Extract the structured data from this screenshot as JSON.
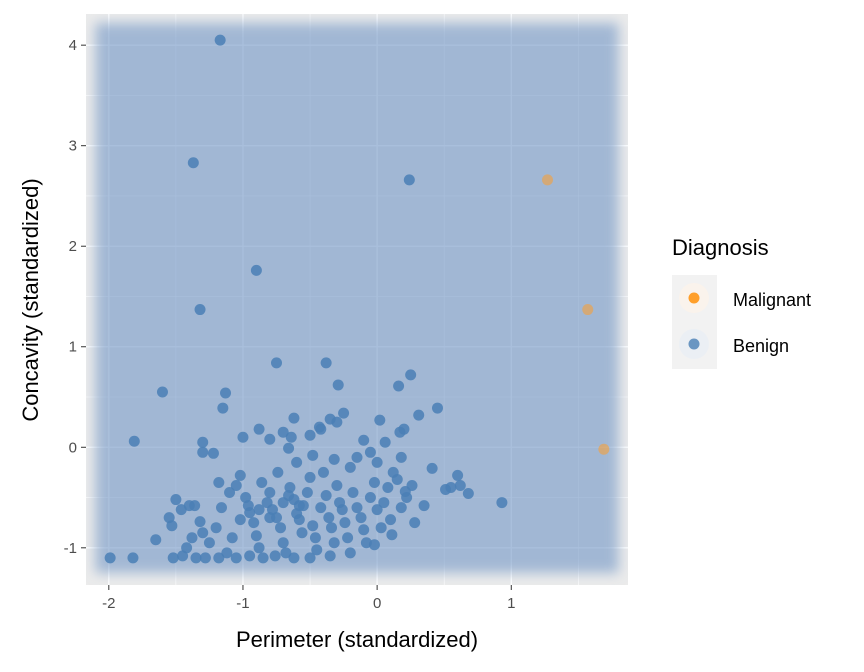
{
  "chart_data": {
    "type": "scatter",
    "title": "",
    "xlabel": "Perimeter (standardized)",
    "ylabel": "Concavity (standardized)",
    "xlim": [
      -2.17,
      1.87
    ],
    "ylim": [
      -1.37,
      4.31
    ],
    "x_ticks": [
      -2,
      -1,
      0,
      1
    ],
    "y_ticks": [
      -1,
      0,
      1,
      2,
      3,
      4
    ],
    "grid": true,
    "background_region": {
      "label": "Benign",
      "x": [
        -2.1,
        1.8
      ],
      "y": [
        -1.25,
        4.22
      ]
    },
    "legend": {
      "title": "Diagnosis",
      "placement": "right",
      "entries": [
        {
          "label": "Malignant",
          "color": "#ff9f2a"
        },
        {
          "label": "Benign",
          "color": "#4a7fb5"
        }
      ]
    },
    "series": [
      {
        "name": "Malignant",
        "color": "#ff9f2a",
        "points": [
          [
            1.27,
            2.66
          ],
          [
            1.57,
            1.37
          ],
          [
            1.69,
            -0.02
          ]
        ]
      },
      {
        "name": "Benign",
        "color": "#4a7fb5",
        "points": [
          [
            -1.17,
            4.05
          ],
          [
            -1.37,
            2.83
          ],
          [
            -1.32,
            1.37
          ],
          [
            -0.9,
            1.76
          ],
          [
            0.24,
            2.66
          ],
          [
            -0.75,
            0.84
          ],
          [
            -0.38,
            0.84
          ],
          [
            -0.29,
            0.62
          ],
          [
            -1.6,
            0.55
          ],
          [
            -1.81,
            0.06
          ],
          [
            -1.13,
            0.54
          ],
          [
            -1.15,
            0.39
          ],
          [
            0.16,
            0.61
          ],
          [
            0.25,
            0.72
          ],
          [
            0.45,
            0.39
          ],
          [
            0.31,
            0.32
          ],
          [
            0.93,
            -0.55
          ],
          [
            -1.99,
            -1.1
          ],
          [
            -1.82,
            -1.1
          ],
          [
            0.6,
            -0.28
          ],
          [
            0.62,
            -0.38
          ],
          [
            0.68,
            -0.46
          ],
          [
            0.51,
            -0.42
          ],
          [
            0.55,
            -0.4
          ],
          [
            0.41,
            -0.21
          ],
          [
            0.35,
            -0.58
          ],
          [
            0.21,
            -0.44
          ],
          [
            0.15,
            -0.32
          ],
          [
            0.2,
            0.18
          ],
          [
            0.17,
            0.15
          ],
          [
            0.06,
            0.05
          ],
          [
            0.02,
            0.27
          ],
          [
            -0.05,
            -0.05
          ],
          [
            -0.1,
            0.07
          ],
          [
            -0.25,
            0.34
          ],
          [
            -0.3,
            0.25
          ],
          [
            -0.35,
            0.28
          ],
          [
            -0.42,
            0.18
          ],
          [
            -0.43,
            0.2
          ],
          [
            -0.5,
            0.12
          ],
          [
            -0.62,
            0.29
          ],
          [
            -0.7,
            0.15
          ],
          [
            -0.64,
            0.1
          ],
          [
            -0.8,
            0.08
          ],
          [
            -0.66,
            -0.01
          ],
          [
            -0.88,
            0.18
          ],
          [
            -1.0,
            0.1
          ],
          [
            -1.3,
            0.05
          ],
          [
            -1.3,
            -0.05
          ],
          [
            -1.22,
            -0.06
          ],
          [
            -1.18,
            -0.35
          ],
          [
            -1.5,
            -0.52
          ],
          [
            -1.46,
            -0.62
          ],
          [
            -1.55,
            -0.7
          ],
          [
            -1.53,
            -0.78
          ],
          [
            -1.65,
            -0.92
          ],
          [
            -1.45,
            -1.08
          ],
          [
            -1.52,
            -1.1
          ],
          [
            -1.35,
            -1.1
          ],
          [
            -1.28,
            -1.1
          ],
          [
            -1.4,
            -0.58
          ],
          [
            -1.32,
            -0.74
          ],
          [
            -1.3,
            -0.85
          ],
          [
            -1.25,
            -0.95
          ],
          [
            -1.2,
            -0.8
          ],
          [
            -1.16,
            -0.6
          ],
          [
            -1.1,
            -0.45
          ],
          [
            -1.05,
            -0.38
          ],
          [
            -1.02,
            -0.28
          ],
          [
            -0.98,
            -0.5
          ],
          [
            -0.95,
            -0.65
          ],
          [
            -0.92,
            -0.75
          ],
          [
            -0.9,
            -0.88
          ],
          [
            -0.88,
            -1.0
          ],
          [
            -0.85,
            -1.1
          ],
          [
            -0.82,
            -0.55
          ],
          [
            -0.8,
            -0.45
          ],
          [
            -0.78,
            -0.62
          ],
          [
            -0.75,
            -0.7
          ],
          [
            -0.72,
            -0.8
          ],
          [
            -0.7,
            -0.95
          ],
          [
            -0.68,
            -1.05
          ],
          [
            -0.65,
            -0.4
          ],
          [
            -0.62,
            -0.52
          ],
          [
            -0.6,
            -0.66
          ],
          [
            -0.58,
            -0.72
          ],
          [
            -0.56,
            -0.85
          ],
          [
            -0.55,
            -0.58
          ],
          [
            -0.52,
            -0.45
          ],
          [
            -0.5,
            -0.3
          ],
          [
            -0.48,
            -0.78
          ],
          [
            -0.46,
            -0.9
          ],
          [
            -0.45,
            -1.02
          ],
          [
            -0.42,
            -0.6
          ],
          [
            -0.4,
            -0.25
          ],
          [
            -0.38,
            -0.48
          ],
          [
            -0.36,
            -0.7
          ],
          [
            -0.34,
            -0.8
          ],
          [
            -0.32,
            -0.95
          ],
          [
            -0.3,
            -0.38
          ],
          [
            -0.28,
            -0.55
          ],
          [
            -0.26,
            -0.62
          ],
          [
            -0.24,
            -0.75
          ],
          [
            -0.22,
            -0.9
          ],
          [
            -0.2,
            -0.2
          ],
          [
            -0.18,
            -0.45
          ],
          [
            -0.15,
            -0.6
          ],
          [
            -0.12,
            -0.7
          ],
          [
            -0.1,
            -0.82
          ],
          [
            -0.08,
            -0.95
          ],
          [
            -0.05,
            -0.5
          ],
          [
            -0.02,
            -0.35
          ],
          [
            0.0,
            -0.62
          ],
          [
            0.03,
            -0.8
          ],
          [
            0.05,
            -0.55
          ],
          [
            0.08,
            -0.4
          ],
          [
            0.1,
            -0.72
          ],
          [
            0.12,
            -0.25
          ],
          [
            0.18,
            -0.6
          ],
          [
            0.22,
            -0.5
          ],
          [
            0.26,
            -0.38
          ],
          [
            0.28,
            -0.75
          ],
          [
            0.11,
            -0.87
          ],
          [
            -0.02,
            -0.97
          ],
          [
            -0.2,
            -1.05
          ],
          [
            -0.35,
            -1.08
          ],
          [
            -0.5,
            -1.1
          ],
          [
            -0.62,
            -1.1
          ],
          [
            -0.76,
            -1.08
          ],
          [
            -0.95,
            -1.08
          ],
          [
            -1.05,
            -1.1
          ],
          [
            -1.12,
            -1.05
          ],
          [
            -1.18,
            -1.1
          ],
          [
            -1.08,
            -0.9
          ],
          [
            -1.02,
            -0.72
          ],
          [
            -0.96,
            -0.58
          ],
          [
            -0.86,
            -0.35
          ],
          [
            -0.74,
            -0.25
          ],
          [
            -0.6,
            -0.15
          ],
          [
            -0.48,
            -0.08
          ],
          [
            -0.32,
            -0.12
          ],
          [
            -0.15,
            -0.1
          ],
          [
            0.0,
            -0.15
          ],
          [
            0.18,
            -0.1
          ],
          [
            -1.36,
            -0.58
          ],
          [
            -1.38,
            -0.9
          ],
          [
            -1.42,
            -1.0
          ],
          [
            -0.66,
            -0.48
          ],
          [
            -0.58,
            -0.58
          ],
          [
            -0.7,
            -0.55
          ],
          [
            -0.8,
            -0.7
          ],
          [
            -0.88,
            -0.62
          ]
        ]
      }
    ]
  }
}
